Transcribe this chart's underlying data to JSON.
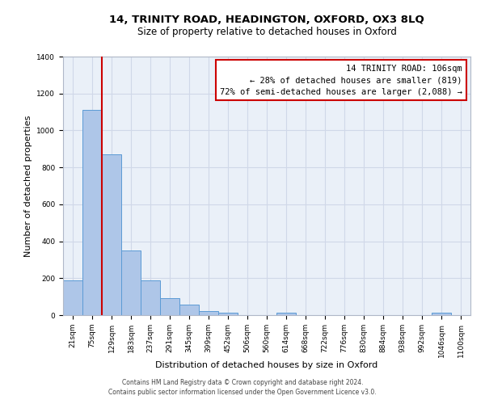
{
  "title1": "14, TRINITY ROAD, HEADINGTON, OXFORD, OX3 8LQ",
  "title2": "Size of property relative to detached houses in Oxford",
  "xlabel": "Distribution of detached houses by size in Oxford",
  "ylabel": "Number of detached properties",
  "bin_labels": [
    "21sqm",
    "75sqm",
    "129sqm",
    "183sqm",
    "237sqm",
    "291sqm",
    "345sqm",
    "399sqm",
    "452sqm",
    "506sqm",
    "560sqm",
    "614sqm",
    "668sqm",
    "722sqm",
    "776sqm",
    "830sqm",
    "884sqm",
    "938sqm",
    "992sqm",
    "1046sqm",
    "1100sqm"
  ],
  "bar_values": [
    190,
    1110,
    870,
    350,
    190,
    90,
    55,
    20,
    13,
    0,
    0,
    12,
    0,
    0,
    0,
    0,
    0,
    0,
    0,
    12,
    0
  ],
  "bar_color": "#aec6e8",
  "bar_edge_color": "#5b9bd5",
  "grid_color": "#d0d8e8",
  "background_color": "#eaf0f8",
  "vline_color": "#cc0000",
  "vline_x": 1.5,
  "ylim": [
    0,
    1400
  ],
  "yticks": [
    0,
    200,
    400,
    600,
    800,
    1000,
    1200,
    1400
  ],
  "annotation_box_text": "14 TRINITY ROAD: 106sqm\n← 28% of detached houses are smaller (819)\n72% of semi-detached houses are larger (2,088) →",
  "annotation_box_color": "#cc0000",
  "footnote1": "Contains HM Land Registry data © Crown copyright and database right 2024.",
  "footnote2": "Contains public sector information licensed under the Open Government Licence v3.0.",
  "title1_fontsize": 9.5,
  "title2_fontsize": 8.5,
  "xlabel_fontsize": 8,
  "ylabel_fontsize": 8,
  "tick_fontsize": 6.5,
  "annot_fontsize": 7.5,
  "footnote_fontsize": 5.5
}
